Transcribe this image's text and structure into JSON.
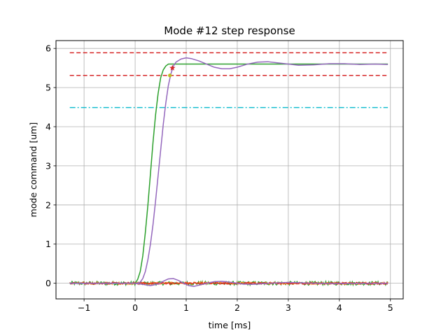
{
  "chart_data": {
    "type": "line",
    "title": "Mode #12 step response",
    "xlabel": "time [ms]",
    "ylabel": "mode command [um]",
    "xlim": [
      -1.55,
      5.25
    ],
    "ylim": [
      -0.4,
      6.2
    ],
    "grid": true,
    "xticks": [
      -1,
      0,
      1,
      2,
      3,
      4,
      5
    ],
    "xtick_labels": [
      "−1",
      "0",
      "1",
      "2",
      "3",
      "4",
      "5"
    ],
    "yticks": [
      0,
      1,
      2,
      3,
      4,
      5,
      6
    ],
    "ytick_labels": [
      "0",
      "1",
      "2",
      "3",
      "4",
      "5",
      "6"
    ],
    "colors": {
      "command": "#2ca02c",
      "response": "#9467bd",
      "noise_green": "#2ca02c",
      "noise_red": "#d62728",
      "noise_orange": "#ff7f0e",
      "tolerance": "#d62728",
      "threshold": "#17becf",
      "marker_star": "#d62728",
      "marker_dot": "#bcbd22",
      "grid": "#b0b0b0"
    },
    "hlines": [
      {
        "y": 5.89,
        "xrange": [
          -1.28,
          4.95
        ],
        "style": "dashed",
        "color": "#d62728"
      },
      {
        "y": 5.31,
        "xrange": [
          -1.28,
          4.95
        ],
        "style": "dashed",
        "color": "#d62728"
      },
      {
        "y": 4.49,
        "xrange": [
          -1.28,
          4.95
        ],
        "style": "dashdot",
        "color": "#17becf"
      }
    ],
    "series": [
      {
        "color": "#2ca02c",
        "x": [
          -1.28,
          0.0,
          0.05,
          0.1,
          0.15,
          0.2,
          0.25,
          0.3,
          0.35,
          0.4,
          0.45,
          0.5,
          0.55,
          0.6,
          0.65,
          0.7,
          0.75,
          4.95
        ],
        "y": [
          0.0,
          0.0,
          0.1,
          0.3,
          0.7,
          1.3,
          2.0,
          2.8,
          3.6,
          4.3,
          4.85,
          5.25,
          5.45,
          5.55,
          5.6,
          5.6,
          5.6,
          5.6
        ]
      },
      {
        "color": "#9467bd",
        "x": [
          -1.28,
          0.05,
          0.1,
          0.15,
          0.2,
          0.25,
          0.3,
          0.35,
          0.4,
          0.45,
          0.5,
          0.55,
          0.6,
          0.65,
          0.7,
          0.75,
          0.8,
          0.9,
          1.0,
          1.1,
          1.25,
          1.4,
          1.55,
          1.7,
          1.85,
          2.0,
          2.2,
          2.4,
          2.6,
          2.8,
          3.0,
          3.2,
          3.5,
          3.8,
          4.1,
          4.4,
          4.7,
          4.95
        ],
        "y": [
          0.0,
          0.0,
          0.03,
          0.12,
          0.3,
          0.6,
          1.0,
          1.5,
          2.1,
          2.75,
          3.4,
          4.05,
          4.6,
          5.05,
          5.35,
          5.55,
          5.65,
          5.73,
          5.76,
          5.74,
          5.68,
          5.6,
          5.52,
          5.48,
          5.48,
          5.52,
          5.6,
          5.65,
          5.66,
          5.63,
          5.6,
          5.57,
          5.58,
          5.61,
          5.61,
          5.59,
          5.6,
          5.59
        ]
      },
      {
        "color": "#9467bd",
        "x": [
          -1.28,
          0.0,
          0.15,
          0.3,
          0.45,
          0.55,
          0.65,
          0.75,
          0.85,
          0.95,
          1.05,
          1.15,
          1.25,
          1.4,
          1.55,
          1.7,
          1.9,
          2.1,
          2.3,
          2.6,
          3.0,
          3.5,
          4.0,
          4.5,
          4.95
        ],
        "y": [
          0.0,
          0.0,
          -0.03,
          -0.06,
          -0.02,
          0.05,
          0.11,
          0.12,
          0.07,
          0.0,
          -0.06,
          -0.08,
          -0.05,
          0.0,
          0.04,
          0.05,
          0.02,
          -0.02,
          -0.03,
          0.0,
          0.02,
          0.0,
          -0.01,
          0.0,
          0.0
        ]
      }
    ],
    "noise_bands": [
      {
        "color": "#2ca02c",
        "center": 0.0,
        "amplitude": 0.05
      },
      {
        "color": "#ff7f0e",
        "center": 0.0,
        "amplitude": 0.03
      },
      {
        "color": "#d62728",
        "center": 0.0,
        "amplitude": 0.025
      }
    ],
    "markers": [
      {
        "x": 0.73,
        "y": 5.5,
        "shape": "star",
        "color": "#d62728"
      },
      {
        "x": 0.68,
        "y": 5.31,
        "shape": "dot",
        "color": "#bcbd22"
      }
    ]
  }
}
